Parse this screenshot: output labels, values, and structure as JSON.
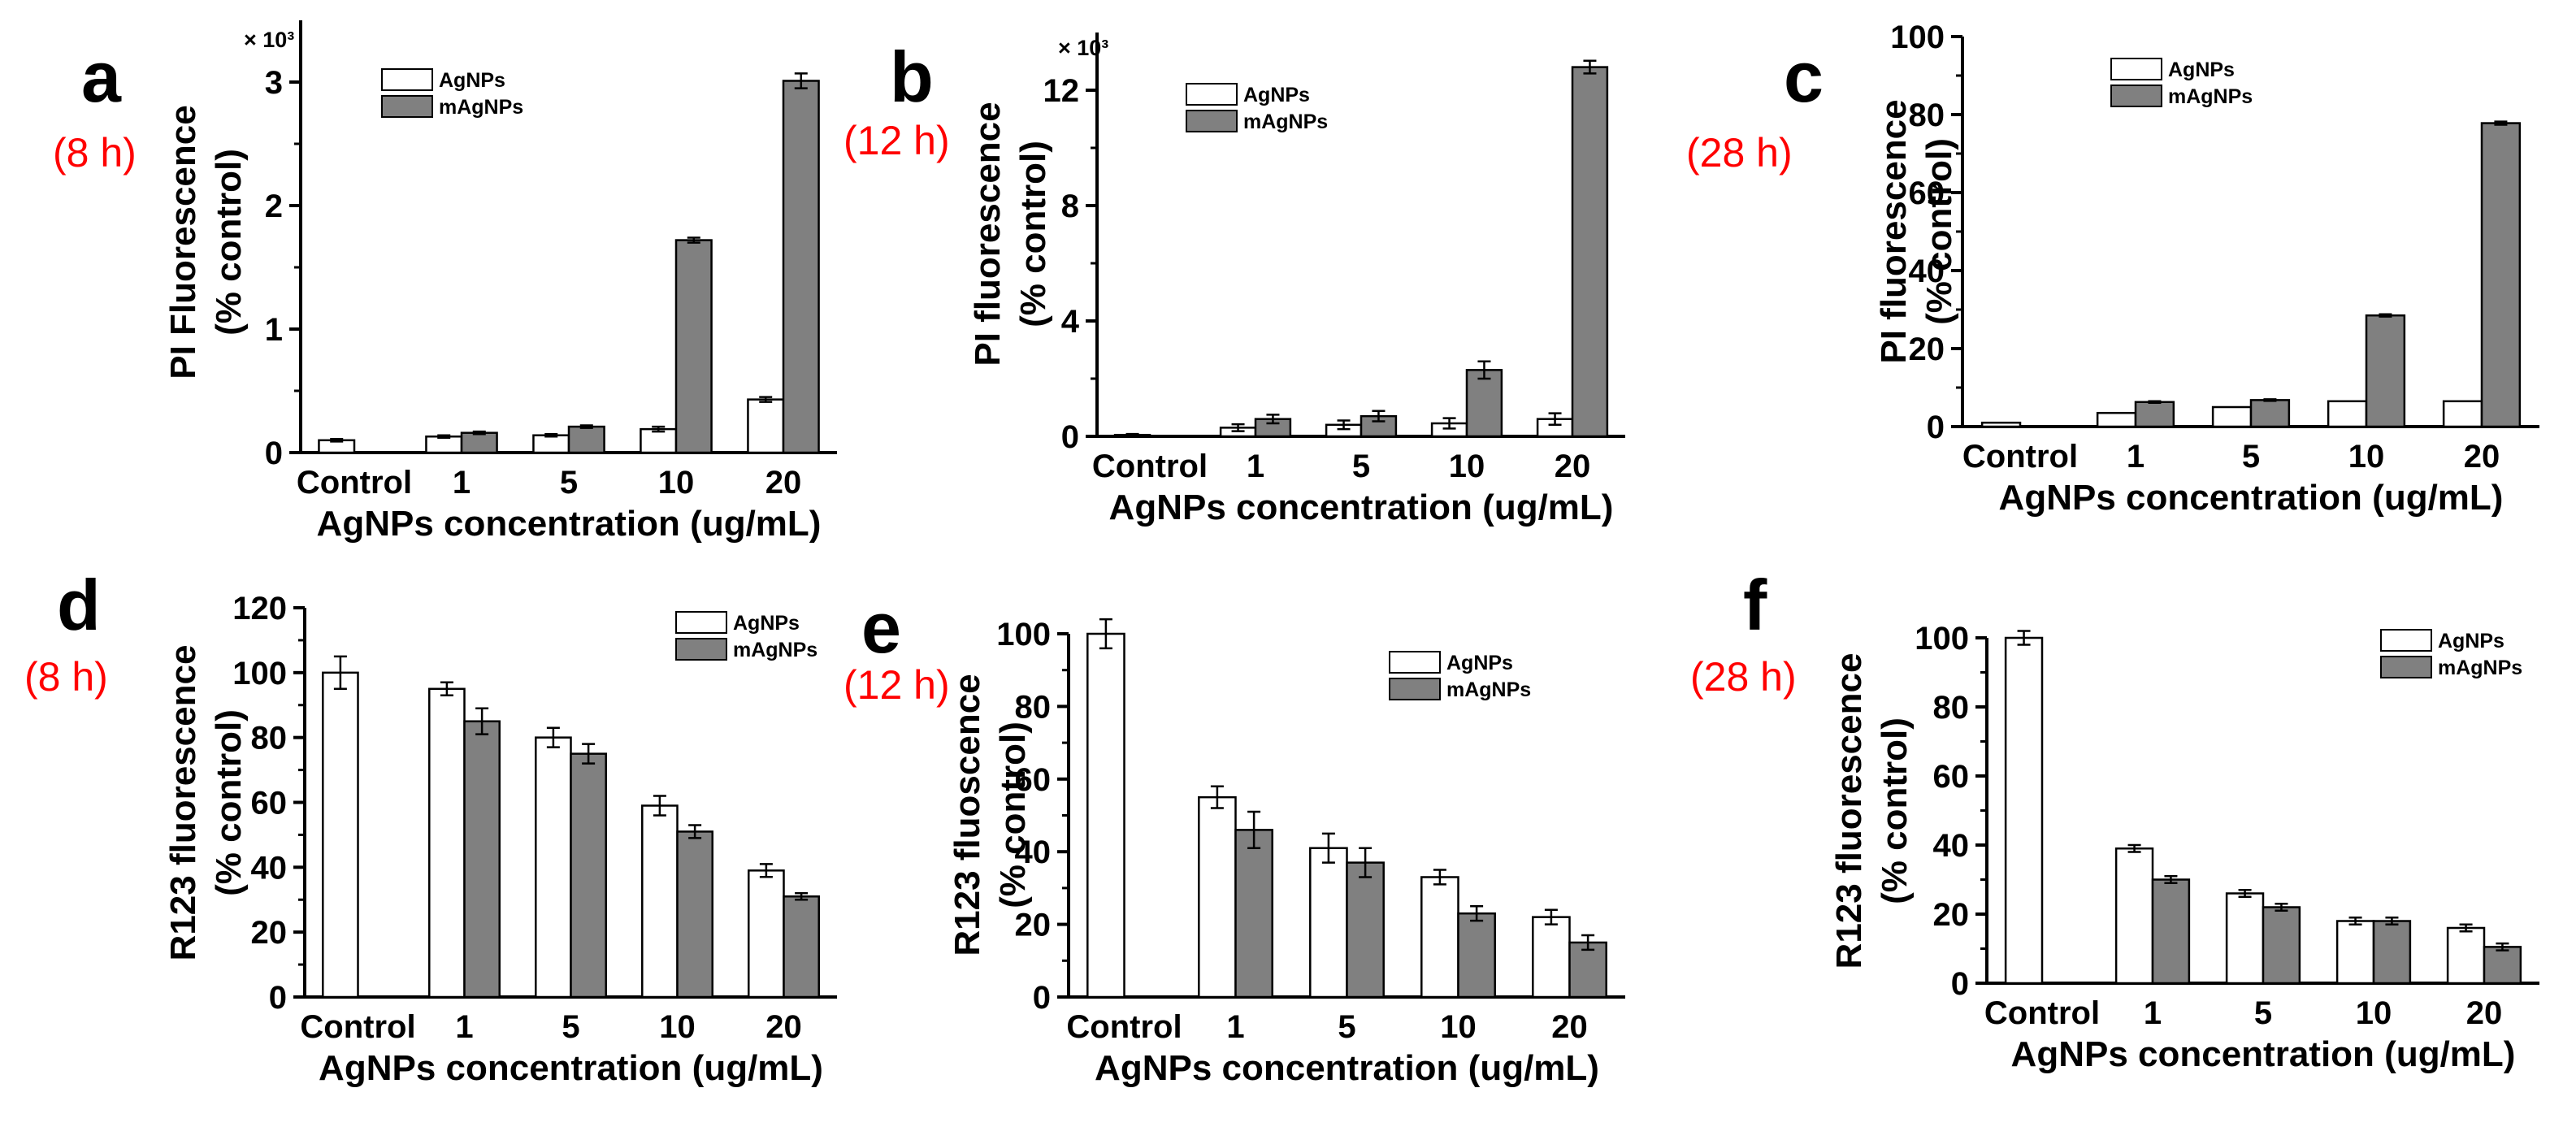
{
  "chart_data": [
    {
      "type": "bar",
      "panel": "a",
      "time": "(8 h)",
      "multiplier": "× 10³",
      "ylabel_line1": "PI Fluorescence",
      "ylabel_line2": "(% control)",
      "xlabel": "AgNPs concentration (ug/mL)",
      "categories": [
        "Control",
        "1",
        "5",
        "10",
        "20"
      ],
      "ylim": [
        0,
        3.5
      ],
      "yticks": [
        0,
        1,
        2,
        3
      ],
      "legend_position": "top-left",
      "series": [
        {
          "name": "AgNPs",
          "color": "#ffffff",
          "values": [
            0.1,
            0.13,
            0.14,
            0.19,
            0.43
          ],
          "errors": [
            0.01,
            0.01,
            0.01,
            0.02,
            0.02
          ]
        },
        {
          "name": "mAgNPs",
          "color": "#808080",
          "values": [
            null,
            0.16,
            0.21,
            1.72,
            3.01
          ],
          "errors": [
            null,
            0.01,
            0.01,
            0.02,
            0.06
          ]
        }
      ]
    },
    {
      "type": "bar",
      "panel": "b",
      "time": "(12 h)",
      "multiplier": "× 10³",
      "ylabel_line1": "PI fluorescence",
      "ylabel_line2": "(% control)",
      "xlabel": "AgNPs concentration (ug/mL)",
      "categories": [
        "Control",
        "1",
        "5",
        "10",
        "20"
      ],
      "ylim": [
        0,
        14
      ],
      "yticks": [
        0,
        4,
        8,
        12
      ],
      "legend_position": "top-left",
      "series": [
        {
          "name": "AgNPs",
          "color": "#ffffff",
          "values": [
            0.05,
            0.3,
            0.4,
            0.45,
            0.6
          ],
          "errors": [
            0.03,
            0.12,
            0.15,
            0.18,
            0.2
          ]
        },
        {
          "name": "mAgNPs",
          "color": "#808080",
          "values": [
            null,
            0.6,
            0.7,
            2.3,
            12.8
          ],
          "errors": [
            null,
            0.15,
            0.18,
            0.3,
            0.22
          ]
        }
      ]
    },
    {
      "type": "bar",
      "panel": "c",
      "time": "(28 h)",
      "multiplier": "",
      "ylabel_line1": "PI fluorescence",
      "ylabel_line2": "(% control)",
      "xlabel": "AgNPs concentration (ug/mL)",
      "categories": [
        "Control",
        "1",
        "5",
        "10",
        "20"
      ],
      "ylim": [
        0,
        100
      ],
      "yticks": [
        0,
        20,
        40,
        60,
        80,
        100
      ],
      "legend_position": "top-left",
      "series": [
        {
          "name": "AgNPs",
          "color": "#ffffff",
          "values": [
            1,
            3.5,
            5,
            6.5,
            6.5
          ],
          "errors": [
            0,
            0,
            0,
            0,
            0
          ]
        },
        {
          "name": "mAgNPs",
          "color": "#808080",
          "values": [
            null,
            6.3,
            6.8,
            28.5,
            77.8
          ],
          "errors": [
            null,
            0.2,
            0.2,
            0.3,
            0.4
          ]
        }
      ]
    },
    {
      "type": "bar",
      "panel": "d",
      "time": "(8 h)",
      "multiplier": "",
      "ylabel_line1": "R123 fluorescence",
      "ylabel_line2": "(% control)",
      "xlabel": "AgNPs concentration (ug/mL)",
      "categories": [
        "Control",
        "1",
        "5",
        "10",
        "20"
      ],
      "ylim": [
        0,
        120
      ],
      "yticks": [
        0,
        20,
        40,
        60,
        80,
        100,
        120
      ],
      "legend_position": "top-right",
      "series": [
        {
          "name": "AgNPs",
          "color": "#ffffff",
          "values": [
            100,
            95,
            80,
            59,
            39
          ],
          "errors": [
            5,
            2,
            3,
            3,
            2
          ]
        },
        {
          "name": "mAgNPs",
          "color": "#808080",
          "values": [
            null,
            85,
            75,
            51,
            31
          ],
          "errors": [
            null,
            4,
            3,
            2,
            1
          ]
        }
      ]
    },
    {
      "type": "bar",
      "panel": "e",
      "time": "(12 h)",
      "multiplier": "",
      "ylabel_line1": "R123 fluoscence",
      "ylabel_line2": "(% control)",
      "xlabel": "AgNPs concentration (ug/mL)",
      "categories": [
        "Control",
        "1",
        "5",
        "10",
        "20"
      ],
      "ylim": [
        0,
        100
      ],
      "yticks": [
        0,
        20,
        40,
        60,
        80,
        100
      ],
      "legend_position": "top-right",
      "series": [
        {
          "name": "AgNPs",
          "color": "#ffffff",
          "values": [
            100,
            55,
            41,
            33,
            22
          ],
          "errors": [
            4,
            3,
            4,
            2,
            2
          ]
        },
        {
          "name": "mAgNPs",
          "color": "#808080",
          "values": [
            null,
            46,
            37,
            23,
            15
          ],
          "errors": [
            null,
            5,
            4,
            2,
            2
          ]
        }
      ]
    },
    {
      "type": "bar",
      "panel": "f",
      "time": "(28 h)",
      "multiplier": "",
      "ylabel_line1": "R123 fluorescence",
      "ylabel_line2": "(% control)",
      "xlabel": "AgNPs concentration (ug/mL)",
      "categories": [
        "Control",
        "1",
        "5",
        "10",
        "20"
      ],
      "ylim": [
        0,
        100
      ],
      "yticks": [
        0,
        20,
        40,
        60,
        80,
        100
      ],
      "legend_position": "top-right",
      "series": [
        {
          "name": "AgNPs",
          "color": "#ffffff",
          "values": [
            100,
            39,
            26,
            18,
            16
          ],
          "errors": [
            2,
            1,
            1,
            1,
            1
          ]
        },
        {
          "name": "mAgNPs",
          "color": "#808080",
          "values": [
            null,
            30,
            22,
            18,
            10.5
          ],
          "errors": [
            null,
            1,
            1,
            1,
            1
          ]
        }
      ]
    }
  ],
  "colors": {
    "time_label": "#ff0000",
    "bar_edge": "#000000"
  }
}
